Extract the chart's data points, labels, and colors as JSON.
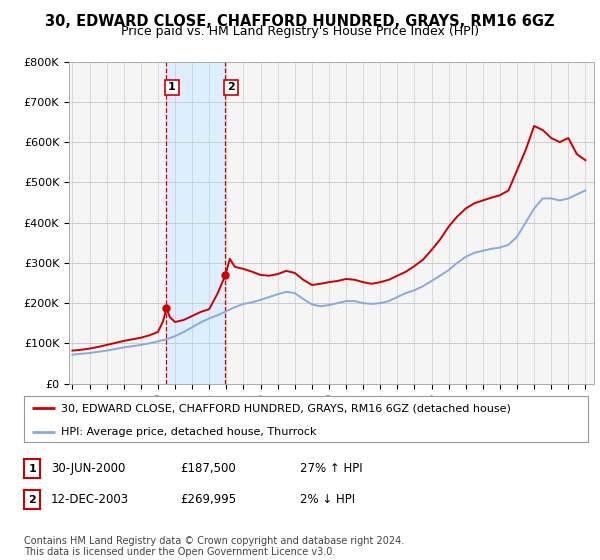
{
  "title": "30, EDWARD CLOSE, CHAFFORD HUNDRED, GRAYS, RM16 6GZ",
  "subtitle": "Price paid vs. HM Land Registry's House Price Index (HPI)",
  "ylim": [
    0,
    800000
  ],
  "yticks": [
    0,
    100000,
    200000,
    300000,
    400000,
    500000,
    600000,
    700000,
    800000
  ],
  "ytick_labels": [
    "£0",
    "£100K",
    "£200K",
    "£300K",
    "£400K",
    "£500K",
    "£600K",
    "£700K",
    "£800K"
  ],
  "xlim_start": 1994.8,
  "xlim_end": 2025.5,
  "transaction1_date": 2000.5,
  "transaction1_price": 187500,
  "transaction1_label": "1",
  "transaction1_text": "30-JUN-2000",
  "transaction1_amount": "£187,500",
  "transaction1_hpi": "27% ↑ HPI",
  "transaction2_date": 2003.95,
  "transaction2_price": 269995,
  "transaction2_label": "2",
  "transaction2_text": "12-DEC-2003",
  "transaction2_amount": "£269,995",
  "transaction2_hpi": "2% ↓ HPI",
  "red_line_color": "#cc0000",
  "blue_line_color": "#88aadd",
  "shade_color": "#ddeeff",
  "vline_color": "#cc0000",
  "legend_label_red": "30, EDWARD CLOSE, CHAFFORD HUNDRED, GRAYS, RM16 6GZ (detached house)",
  "legend_label_blue": "HPI: Average price, detached house, Thurrock",
  "footer": "Contains HM Land Registry data © Crown copyright and database right 2024.\nThis data is licensed under the Open Government Licence v3.0.",
  "bg_color": "#ffffff",
  "plot_bg_color": "#f5f5f5",
  "grid_color": "#cccccc",
  "title_fontsize": 10.5,
  "subtitle_fontsize": 9,
  "tick_fontsize": 8,
  "legend_fontsize": 8,
  "footer_fontsize": 7,
  "hpi_x": [
    1995.0,
    1995.5,
    1996.0,
    1996.5,
    1997.0,
    1997.5,
    1998.0,
    1998.5,
    1999.0,
    1999.5,
    2000.0,
    2000.5,
    2001.0,
    2001.5,
    2002.0,
    2002.5,
    2003.0,
    2003.5,
    2004.0,
    2004.5,
    2005.0,
    2005.5,
    2006.0,
    2006.5,
    2007.0,
    2007.5,
    2008.0,
    2008.5,
    2009.0,
    2009.5,
    2010.0,
    2010.5,
    2011.0,
    2011.5,
    2012.0,
    2012.5,
    2013.0,
    2013.5,
    2014.0,
    2014.5,
    2015.0,
    2015.5,
    2016.0,
    2016.5,
    2017.0,
    2017.5,
    2018.0,
    2018.5,
    2019.0,
    2019.5,
    2020.0,
    2020.5,
    2021.0,
    2021.5,
    2022.0,
    2022.5,
    2023.0,
    2023.5,
    2024.0,
    2024.5,
    2025.0
  ],
  "hpi_y": [
    72000,
    74000,
    76000,
    79000,
    82000,
    86000,
    90000,
    93000,
    96000,
    100000,
    105000,
    110000,
    118000,
    128000,
    140000,
    152000,
    162000,
    170000,
    180000,
    190000,
    198000,
    202000,
    208000,
    215000,
    222000,
    228000,
    225000,
    210000,
    197000,
    192000,
    195000,
    200000,
    205000,
    205000,
    200000,
    198000,
    200000,
    205000,
    215000,
    225000,
    232000,
    242000,
    255000,
    268000,
    282000,
    300000,
    315000,
    325000,
    330000,
    335000,
    338000,
    345000,
    365000,
    400000,
    435000,
    460000,
    460000,
    455000,
    460000,
    470000,
    480000
  ],
  "prop_x": [
    1995.0,
    1995.5,
    1996.0,
    1996.5,
    1997.0,
    1997.5,
    1998.0,
    1998.5,
    1999.0,
    1999.5,
    2000.0,
    2000.3,
    2000.5,
    2000.7,
    2001.0,
    2001.5,
    2002.0,
    2002.5,
    2003.0,
    2003.5,
    2003.95,
    2004.2,
    2004.5,
    2005.0,
    2005.5,
    2006.0,
    2006.5,
    2007.0,
    2007.5,
    2008.0,
    2008.5,
    2009.0,
    2009.5,
    2010.0,
    2010.5,
    2011.0,
    2011.5,
    2012.0,
    2012.5,
    2013.0,
    2013.5,
    2014.0,
    2014.5,
    2015.0,
    2015.5,
    2016.0,
    2016.5,
    2017.0,
    2017.5,
    2018.0,
    2018.5,
    2019.0,
    2019.5,
    2020.0,
    2020.5,
    2021.0,
    2021.5,
    2022.0,
    2022.5,
    2023.0,
    2023.5,
    2024.0,
    2024.5,
    2025.0
  ],
  "prop_y": [
    82000,
    84000,
    87000,
    91000,
    96000,
    101000,
    106000,
    110000,
    114000,
    120000,
    128000,
    155000,
    187500,
    165000,
    153000,
    158000,
    168000,
    178000,
    185000,
    225000,
    269995,
    310000,
    290000,
    285000,
    278000,
    270000,
    268000,
    272000,
    280000,
    275000,
    258000,
    245000,
    248000,
    252000,
    255000,
    260000,
    258000,
    252000,
    248000,
    252000,
    258000,
    268000,
    278000,
    292000,
    308000,
    332000,
    358000,
    390000,
    415000,
    435000,
    448000,
    455000,
    462000,
    468000,
    480000,
    530000,
    580000,
    640000,
    630000,
    610000,
    600000,
    610000,
    570000,
    555000
  ]
}
